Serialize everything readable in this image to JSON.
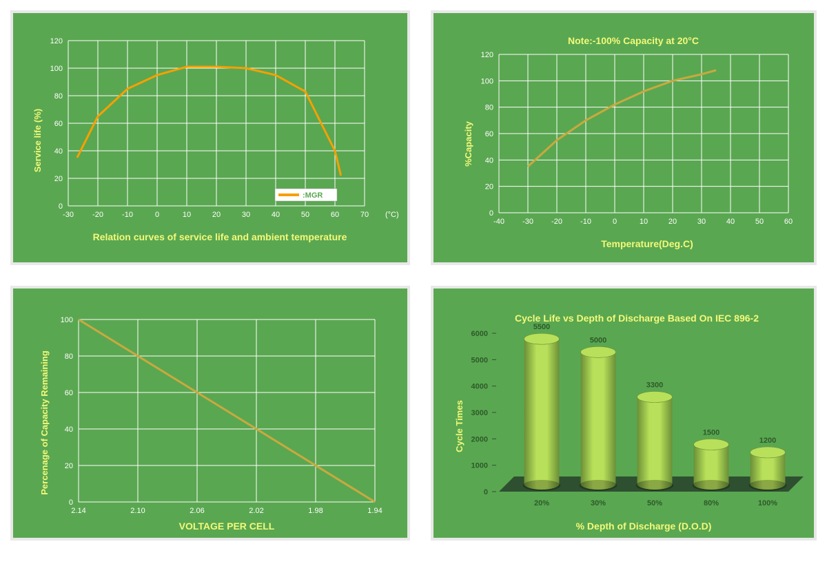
{
  "panel_bg": "#5aa751",
  "panel_border": "#e8e8e8",
  "text_yellow": "#f3f97a",
  "text_white": "#ffffff",
  "grid_color": "#ffffff",
  "chart1": {
    "type": "line",
    "title": "Relation curves of service life and ambient temperature",
    "ylabel": "Service life (%)",
    "x_unit": "(°C)",
    "legend_label": ":MGR",
    "curve_color": "#f7a000",
    "curve_width": 4,
    "x_ticks": [
      -30,
      -20,
      -10,
      0,
      10,
      20,
      30,
      40,
      50,
      60,
      70
    ],
    "y_ticks": [
      0,
      20,
      40,
      60,
      80,
      100,
      120
    ],
    "xlim": [
      -30,
      70
    ],
    "ylim": [
      0,
      120
    ],
    "data_x": [
      -27,
      -20,
      -10,
      0,
      10,
      20,
      30,
      40,
      50,
      60,
      62
    ],
    "data_y": [
      35,
      65,
      85,
      95,
      101,
      101,
      100,
      95,
      83,
      40,
      22
    ]
  },
  "chart2": {
    "type": "line",
    "title": "Note:-100% Capacity at 20°C",
    "ylabel": "%Capacity",
    "xlabel": "Temperature(Deg.C)",
    "curve_color": "#c9a940",
    "curve_width": 1,
    "x_ticks": [
      -40,
      -30,
      -20,
      -10,
      0,
      10,
      20,
      30,
      40,
      50,
      60
    ],
    "y_ticks": [
      0,
      20,
      40,
      60,
      80,
      100,
      120
    ],
    "xlim": [
      -40,
      60
    ],
    "ylim": [
      0,
      120
    ],
    "data_x": [
      -30,
      -20,
      -10,
      0,
      10,
      20,
      30,
      35
    ],
    "data_y": [
      35,
      55,
      70,
      82,
      92,
      100,
      105,
      108
    ]
  },
  "chart3": {
    "type": "line",
    "ylabel": "Percenage of Capacity Remaining",
    "xlabel": "VOLTAGE PER CELL",
    "curve_color": "#c9a940",
    "curve_width": 1,
    "x_ticks": [
      "2.14",
      "2.10",
      "2.06",
      "2.02",
      "1.98",
      "1.94"
    ],
    "y_ticks": [
      0,
      20,
      40,
      60,
      80,
      100
    ],
    "xlim": [
      0,
      5
    ],
    "ylim": [
      0,
      100
    ],
    "data_x": [
      0,
      5
    ],
    "data_y": [
      100,
      0
    ]
  },
  "chart4": {
    "type": "bar",
    "title": "Cycle Life vs Depth of Discharge Based On IEC 896-2",
    "ylabel": "Cycle Times",
    "xlabel": "% Depth of Discharge (D.O.D)",
    "bar_color_light": "#b8e05a",
    "bar_color_dark": "#6b8f37",
    "floor_color": "#2e5030",
    "categories": [
      "20%",
      "30%",
      "50%",
      "80%",
      "100%"
    ],
    "values": [
      5500,
      5000,
      3300,
      1500,
      1200
    ],
    "y_ticks": [
      0,
      1000,
      2000,
      3000,
      4000,
      5000,
      6000
    ],
    "ylim": [
      0,
      6000
    ]
  }
}
